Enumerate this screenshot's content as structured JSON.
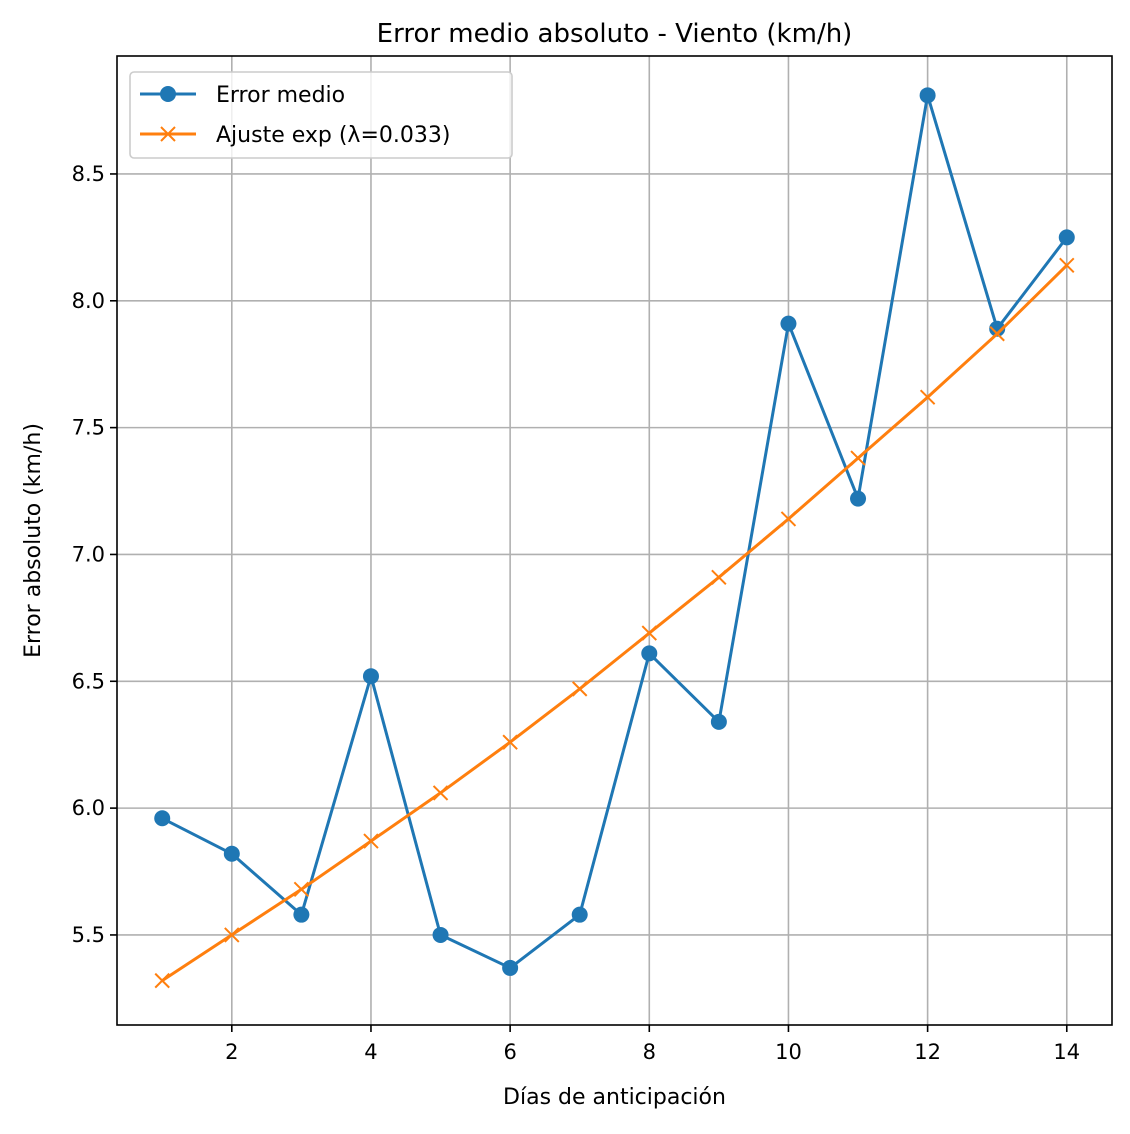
{
  "chart_data": {
    "type": "line",
    "title": "Error medio absoluto - Viento (km/h)",
    "xlabel": "Días de anticipación",
    "ylabel": "Error absoluto (km/h)",
    "xlim": [
      0.35,
      14.65
    ],
    "ylim": [
      5.145,
      8.965
    ],
    "xticks": [
      2,
      4,
      6,
      8,
      10,
      12,
      14
    ],
    "xtick_labels": [
      "2",
      "4",
      "6",
      "8",
      "10",
      "12",
      "14"
    ],
    "yticks": [
      5.5,
      6.0,
      6.5,
      7.0,
      7.5,
      8.0,
      8.5
    ],
    "ytick_labels": [
      "5.5",
      "6.0",
      "6.5",
      "7.0",
      "7.5",
      "8.0",
      "8.5"
    ],
    "grid": true,
    "legend_position": "upper-left",
    "x": [
      1,
      2,
      3,
      4,
      5,
      6,
      7,
      8,
      9,
      10,
      11,
      12,
      13,
      14
    ],
    "series": [
      {
        "name": "Error medio",
        "color": "#1f77b4",
        "marker": "circle",
        "values": [
          5.96,
          5.82,
          5.58,
          6.52,
          5.5,
          5.37,
          5.58,
          6.61,
          6.34,
          7.91,
          7.22,
          8.81,
          7.89,
          8.25
        ]
      },
      {
        "name": "Ajuste exp (λ=0.033)",
        "color": "#ff7f0e",
        "marker": "x",
        "values": [
          5.32,
          5.5,
          5.68,
          5.87,
          6.06,
          6.26,
          6.47,
          6.69,
          6.91,
          7.14,
          7.38,
          7.62,
          7.87,
          8.14
        ]
      }
    ]
  }
}
